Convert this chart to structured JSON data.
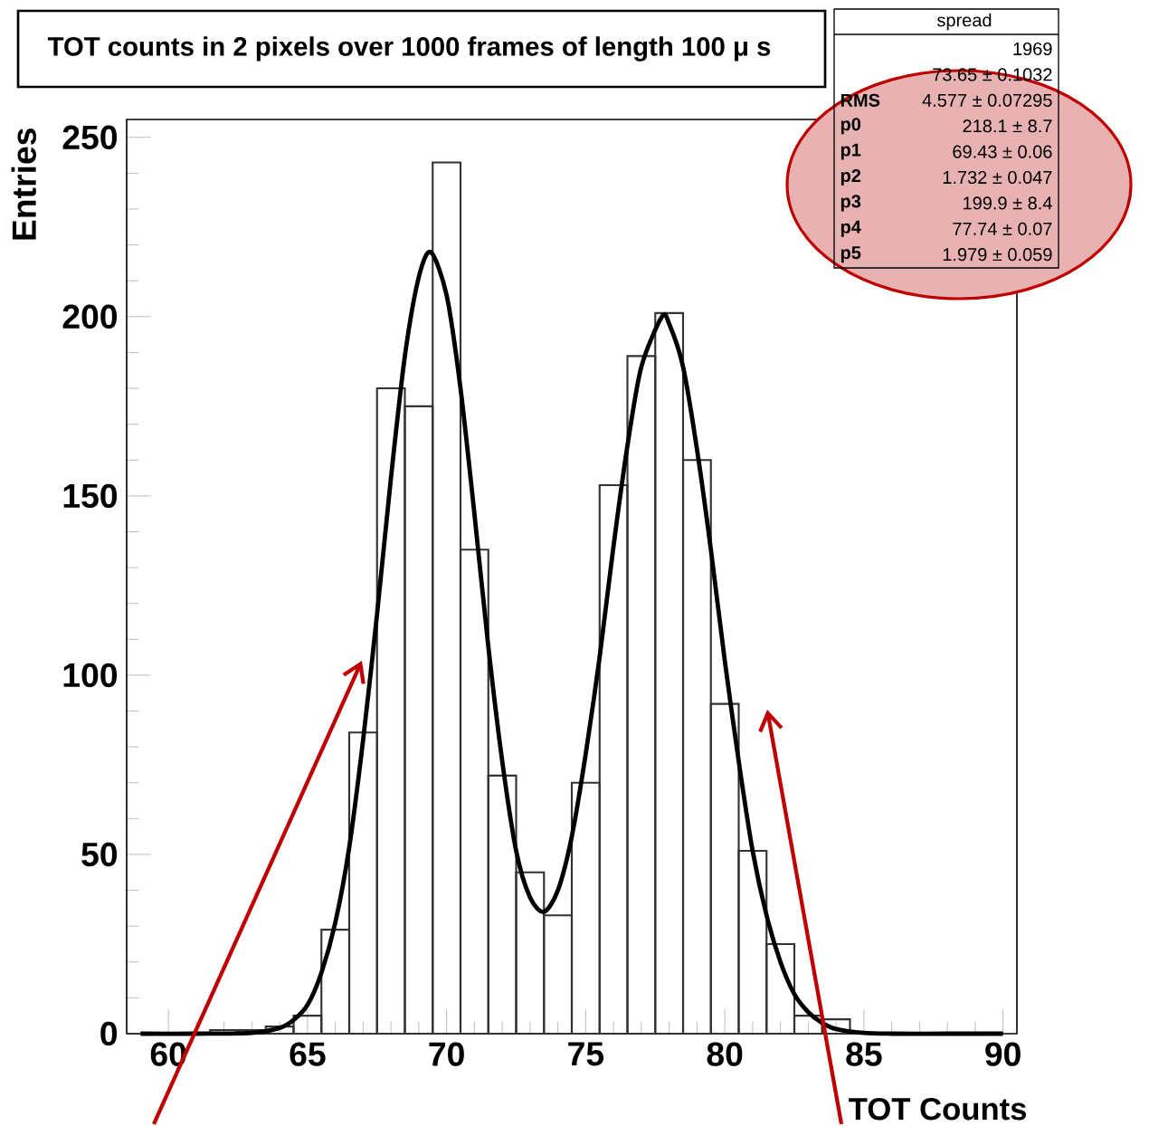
{
  "chart_data": {
    "type": "histogram",
    "title": "TOT counts in 2 pixels over 1000 frames of length 100 μ s",
    "xlabel": "TOT Counts",
    "ylabel": "Entries",
    "xlim": [
      58.5,
      90.5
    ],
    "ylim": [
      0,
      255
    ],
    "xticks": [
      60,
      65,
      70,
      75,
      80,
      85,
      90
    ],
    "yticks": [
      0,
      50,
      100,
      150,
      200,
      250
    ],
    "color": "#333333",
    "bins": [
      61.5,
      62.5,
      63.5,
      64.5,
      65.5,
      66.5,
      67.5,
      68.5,
      69.5,
      70.5,
      71.5,
      72.5,
      73.5,
      74.5,
      75.5,
      76.5,
      77.5,
      78.5,
      79.5,
      80.5,
      81.5,
      82.5,
      83.5,
      84.5
    ],
    "values": [
      1,
      1,
      2,
      5,
      29,
      84,
      180,
      175,
      243,
      135,
      72,
      45,
      33,
      70,
      153,
      189,
      201,
      160,
      92,
      51,
      25,
      5,
      4
    ],
    "series": [
      {
        "type": "line",
        "color": "#000000",
        "x": [
          59,
          61,
          63,
          64,
          64.5,
          65,
          65.5,
          66,
          66.5,
          67,
          67.5,
          68,
          68.5,
          69,
          69.43,
          70,
          70.5,
          71,
          71.5,
          72,
          72.5,
          73,
          73.5,
          74,
          74.5,
          75,
          75.5,
          76,
          76.5,
          77,
          77.74,
          78,
          78.5,
          79,
          79.5,
          80,
          80.5,
          81,
          81.5,
          82,
          82.5,
          83,
          83.5,
          84,
          85,
          86,
          88,
          90
        ],
        "values": [
          0,
          0,
          0.2,
          1.6,
          3.8,
          8,
          17,
          31,
          52,
          82,
          117,
          155,
          189,
          211,
          218,
          206,
          180,
          145,
          108,
          76,
          51,
          38,
          34,
          40,
          55,
          78,
          105,
          136,
          164,
          186,
          200,
          198,
          186,
          163,
          135,
          104,
          76,
          51,
          33,
          20,
          11,
          6,
          3,
          1.3,
          0.2,
          0,
          0,
          0
        ]
      }
    ],
    "annotations": [
      "spread",
      "1969",
      "73.65 ± 0.1032",
      "RMS",
      "4.577 ± 0.07295",
      "p0",
      "218.1 ± 8.7",
      "p1",
      "69.43 ± 0.06",
      "p2",
      "1.732 ± 0.047",
      "p3",
      "199.9 ± 8.4",
      "p4",
      "77.74 ± 0.07",
      "p5",
      "1.979 ± 0.059"
    ]
  }
}
